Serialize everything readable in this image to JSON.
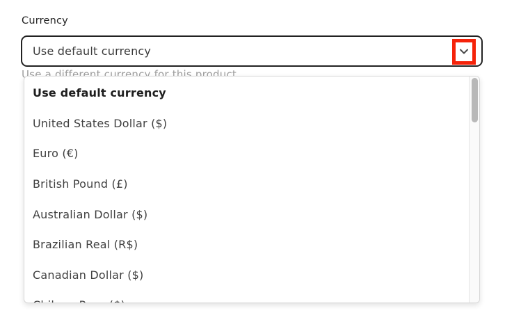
{
  "field": {
    "label": "Currency",
    "select": {
      "value": "Use default currency"
    },
    "helper_text": "Use a different currency for this product"
  },
  "dropdown": {
    "options": [
      {
        "label": "Use default currency",
        "selected": true
      },
      {
        "label": "United States Dollar ($)",
        "selected": false
      },
      {
        "label": "Euro (€)",
        "selected": false
      },
      {
        "label": "British Pound (£)",
        "selected": false
      },
      {
        "label": "Australian Dollar ($)",
        "selected": false
      },
      {
        "label": "Brazilian Real (R$)",
        "selected": false
      },
      {
        "label": "Canadian Dollar ($)",
        "selected": false
      },
      {
        "label": "Chilean Peso ($)",
        "selected": false
      }
    ]
  },
  "icons": {
    "select_indicator": "chevron-down-icon"
  },
  "annotation": {
    "color": "#f5230a",
    "target": "chevron-down-icon"
  }
}
